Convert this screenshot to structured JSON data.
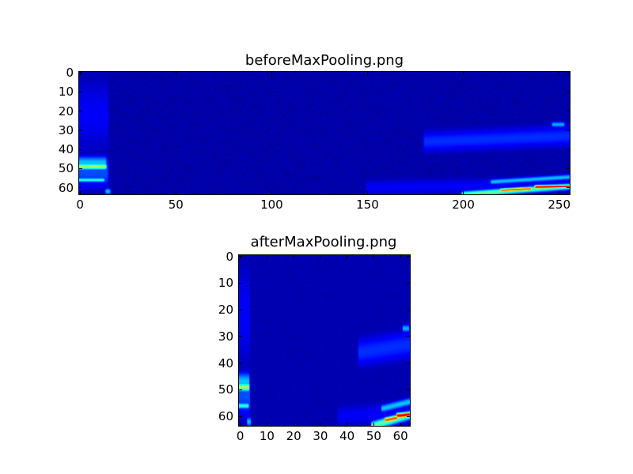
{
  "chart_data": [
    {
      "type": "heatmap",
      "title": "beforeMaxPooling.png",
      "colormap": "jet",
      "xlim": [
        -0.5,
        255.5
      ],
      "ylim": [
        63.5,
        -0.5
      ],
      "xticks": [
        "0",
        "50",
        "100",
        "150",
        "200",
        "250"
      ],
      "yticks": [
        "0",
        "10",
        "20",
        "30",
        "40",
        "50",
        "60"
      ],
      "xtick_values": [
        0,
        50,
        100,
        150,
        200,
        250
      ],
      "ytick_values": [
        0,
        10,
        20,
        30,
        40,
        50,
        60
      ],
      "background_intensity": 0.04,
      "features": [
        {
          "x0": 0,
          "x1": 13,
          "y0": 49,
          "y1": 49,
          "spread": 1.2,
          "intensity": 0.52
        },
        {
          "x0": 0,
          "x1": 13,
          "y0": 47,
          "y1": 47,
          "spread": 2.5,
          "intensity": 0.3
        },
        {
          "x0": 0,
          "x1": 12,
          "y0": 56,
          "y1": 56,
          "spread": 0.8,
          "intensity": 0.4
        },
        {
          "x0": 0,
          "x1": 14,
          "y0": 52,
          "y1": 52,
          "spread": 6,
          "intensity": 0.18
        },
        {
          "x0": 0,
          "x1": 14,
          "y0": 22,
          "y1": 22,
          "spread": 14,
          "intensity": 0.1
        },
        {
          "x0": 14,
          "x1": 15,
          "y0": 62,
          "y1": 62,
          "spread": 1.2,
          "intensity": 0.3
        },
        {
          "x0": 200,
          "x1": 255,
          "y0": 63.5,
          "y1": 59.5,
          "spread": 1.2,
          "intensity": 0.45
        },
        {
          "x0": 220,
          "x1": 235,
          "y0": 61.4,
          "y1": 60.6,
          "spread": 0.7,
          "intensity": 0.78
        },
        {
          "x0": 238,
          "x1": 255,
          "y0": 59.7,
          "y1": 59.3,
          "spread": 0.7,
          "intensity": 0.9
        },
        {
          "x0": 215,
          "x1": 255,
          "y0": 57,
          "y1": 54.5,
          "spread": 1,
          "intensity": 0.3
        },
        {
          "x0": 180,
          "x1": 255,
          "y0": 36,
          "y1": 33,
          "spread": 4,
          "intensity": 0.15
        },
        {
          "x0": 247,
          "x1": 252,
          "y0": 27,
          "y1": 27,
          "spread": 1,
          "intensity": 0.28
        },
        {
          "x0": 150,
          "x1": 255,
          "y0": 60,
          "y1": 58,
          "spread": 3,
          "intensity": 0.1
        }
      ]
    },
    {
      "type": "heatmap",
      "title": "afterMaxPooling.png",
      "colormap": "jet",
      "xlim": [
        -0.5,
        63.5
      ],
      "ylim": [
        63.5,
        -0.5
      ],
      "xticks": [
        "0",
        "10",
        "20",
        "30",
        "40",
        "50",
        "60"
      ],
      "yticks": [
        "0",
        "10",
        "20",
        "30",
        "40",
        "50",
        "60"
      ],
      "xtick_values": [
        0,
        10,
        20,
        30,
        40,
        50,
        60
      ],
      "ytick_values": [
        0,
        10,
        20,
        30,
        40,
        50,
        60
      ],
      "derived_from": "beforeMaxPooling.png",
      "pool_factor_x": 4
    }
  ]
}
